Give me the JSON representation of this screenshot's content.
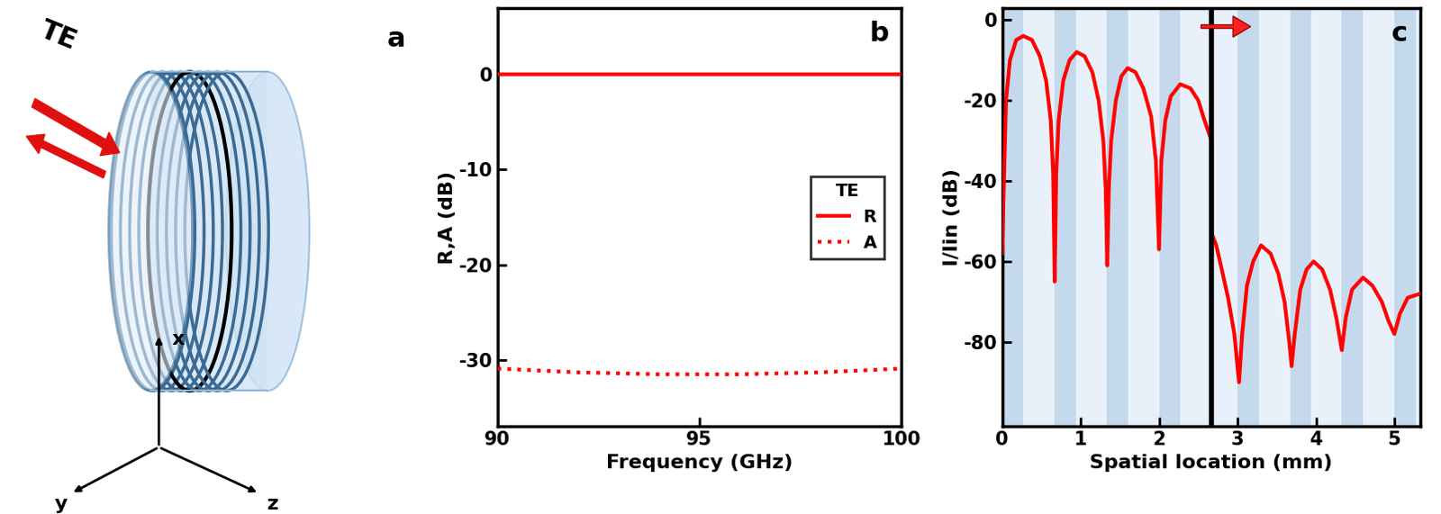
{
  "illustration": {
    "panel_label": "a",
    "polarization": "TE",
    "axis_labels": [
      "x",
      "y",
      "z"
    ]
  },
  "chart_data": [
    {
      "type": "line",
      "panel_label": "b",
      "x_label": "Frequency (GHz)",
      "y_label": "R,A (dB)",
      "x": [
        90,
        91,
        92,
        93,
        94,
        95,
        96,
        97,
        98,
        99,
        100
      ],
      "series": [
        {
          "name": "R",
          "color": "#ff0000",
          "line_style": "solid",
          "values": [
            0,
            0,
            0,
            0,
            0,
            0,
            0,
            0,
            0,
            0,
            0
          ]
        },
        {
          "name": "A",
          "color": "#ff0000",
          "line_style": "dotted",
          "values": [
            -30.9,
            -31.1,
            -31.3,
            -31.4,
            -31.5,
            -31.5,
            -31.5,
            -31.4,
            -31.3,
            -31.1,
            -30.9
          ]
        }
      ],
      "xlim": [
        90,
        100
      ],
      "ylim": [
        -37,
        7
      ],
      "xticks": [
        90,
        95,
        100
      ],
      "yticks": [
        -30,
        -20,
        -10,
        0
      ],
      "legend": "center right",
      "legend_title": "TE"
    },
    {
      "type": "line",
      "panel_label": "c",
      "x_label": "Spatial location (mm)",
      "y_label": "I/Iin (dB)",
      "x": [
        0,
        0.05,
        0.1,
        0.18,
        0.27,
        0.38,
        0.48,
        0.56,
        0.62,
        0.65,
        0.67,
        0.69,
        0.72,
        0.78,
        0.86,
        0.95,
        1.05,
        1.15,
        1.23,
        1.29,
        1.32,
        1.34,
        1.36,
        1.39,
        1.45,
        1.52,
        1.6,
        1.7,
        1.8,
        1.9,
        1.96,
        2.0,
        2.03,
        2.08,
        2.15,
        2.27,
        2.4,
        2.5,
        2.58,
        2.67,
        2.67,
        2.73,
        2.8,
        2.88,
        2.96,
        3.02,
        3.06,
        3.12,
        3.2,
        3.3,
        3.42,
        3.52,
        3.6,
        3.66,
        3.69,
        3.73,
        3.8,
        3.88,
        3.97,
        4.08,
        4.18,
        4.26,
        4.33,
        4.38,
        4.46,
        4.6,
        4.72,
        4.84,
        4.93,
        5.0,
        5.07,
        5.17,
        5.33
      ],
      "series": [
        {
          "color": "#ff0000",
          "line_style": "solid",
          "values": [
            -58,
            -20,
            -10,
            -5,
            -4,
            -5,
            -9,
            -15,
            -25,
            -38,
            -65,
            -38,
            -25,
            -15,
            -10,
            -8,
            -9,
            -13,
            -20,
            -30,
            -42,
            -61,
            -42,
            -30,
            -20,
            -14,
            -12,
            -13,
            -17,
            -24,
            -35,
            -57,
            -35,
            -25,
            -19,
            -16,
            -17,
            -20,
            -25,
            -30,
            -53,
            -56,
            -62,
            -69,
            -78,
            -90,
            -78,
            -66,
            -60,
            -56,
            -58,
            -63,
            -70,
            -80,
            -86,
            -78,
            -67,
            -62,
            -60,
            -62,
            -67,
            -74,
            -82,
            -74,
            -67,
            -64,
            -66,
            -70,
            -75,
            -78,
            -73,
            -69,
            -68
          ]
        }
      ],
      "layer_bands": [
        [
          0,
          0.27
        ],
        [
          0.67,
          0.94
        ],
        [
          1.33,
          1.6
        ],
        [
          2.0,
          2.27
        ],
        [
          3.0,
          3.27
        ],
        [
          3.67,
          3.94
        ],
        [
          4.33,
          4.6
        ],
        [
          5.0,
          5.27
        ]
      ],
      "interface": 2.67,
      "xlim": [
        0,
        5.33
      ],
      "ylim": [
        -101,
        3
      ],
      "xticks": [
        0,
        1,
        2,
        3,
        4,
        5
      ],
      "yticks": [
        -80,
        -60,
        -40,
        -20,
        0
      ]
    }
  ]
}
